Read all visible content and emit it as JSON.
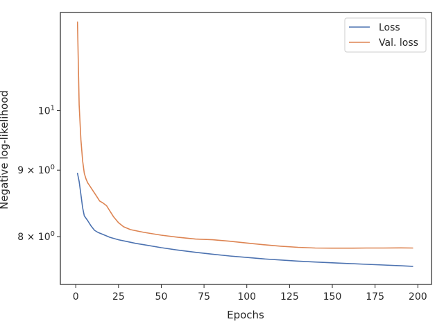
{
  "chart_data": {
    "type": "line",
    "title": "",
    "xlabel": "Epochs",
    "ylabel": "Negative log-likelihood",
    "xlim": [
      -9,
      208
    ],
    "ylim": [
      7.35,
      11.9
    ],
    "yscale": "log",
    "grid": false,
    "legend_position": "top-right",
    "xticks": [
      {
        "value": 0,
        "label": "0"
      },
      {
        "value": 25,
        "label": "25"
      },
      {
        "value": 50,
        "label": "50"
      },
      {
        "value": 75,
        "label": "75"
      },
      {
        "value": 100,
        "label": "100"
      },
      {
        "value": 125,
        "label": "125"
      },
      {
        "value": 150,
        "label": "150"
      },
      {
        "value": 175,
        "label": "175"
      },
      {
        "value": 200,
        "label": "200"
      }
    ],
    "yticks": [
      {
        "value": 8,
        "base": "8",
        "mid": " × ",
        "exp_base": "10",
        "exp": "0"
      },
      {
        "value": 9,
        "base": "9",
        "mid": " × ",
        "exp_base": "10",
        "exp": "0"
      },
      {
        "value": 10,
        "base": "",
        "mid": "",
        "exp_base": "10",
        "exp": "1"
      }
    ],
    "series": [
      {
        "name": "Loss",
        "color": "#4c72b0",
        "x": [
          1,
          2,
          3,
          4,
          5,
          7,
          9,
          11,
          13,
          16,
          20,
          25,
          30,
          35,
          40,
          50,
          60,
          70,
          80,
          90,
          100,
          110,
          120,
          130,
          140,
          150,
          160,
          170,
          180,
          190,
          197
        ],
        "y": [
          8.95,
          8.82,
          8.62,
          8.42,
          8.3,
          8.23,
          8.15,
          8.09,
          8.06,
          8.03,
          7.99,
          7.955,
          7.93,
          7.905,
          7.885,
          7.845,
          7.81,
          7.78,
          7.755,
          7.73,
          7.71,
          7.69,
          7.675,
          7.66,
          7.648,
          7.637,
          7.627,
          7.617,
          7.607,
          7.597,
          7.59
        ]
      },
      {
        "name": "Val. loss",
        "color": "#dd8452",
        "x": [
          1,
          2,
          3,
          4,
          5,
          6,
          7,
          8,
          10,
          12,
          14,
          16,
          18,
          20,
          22,
          25,
          28,
          32,
          36,
          40,
          50,
          60,
          70,
          80,
          90,
          100,
          110,
          120,
          130,
          140,
          150,
          160,
          170,
          180,
          190,
          197
        ],
        "y": [
          11.7,
          10.1,
          9.5,
          9.15,
          8.95,
          8.86,
          8.8,
          8.76,
          8.68,
          8.6,
          8.52,
          8.49,
          8.45,
          8.37,
          8.29,
          8.2,
          8.14,
          8.1,
          8.08,
          8.06,
          8.02,
          7.99,
          7.965,
          7.955,
          7.935,
          7.91,
          7.885,
          7.865,
          7.85,
          7.84,
          7.838,
          7.838,
          7.84,
          7.84,
          7.842,
          7.84
        ]
      }
    ]
  }
}
